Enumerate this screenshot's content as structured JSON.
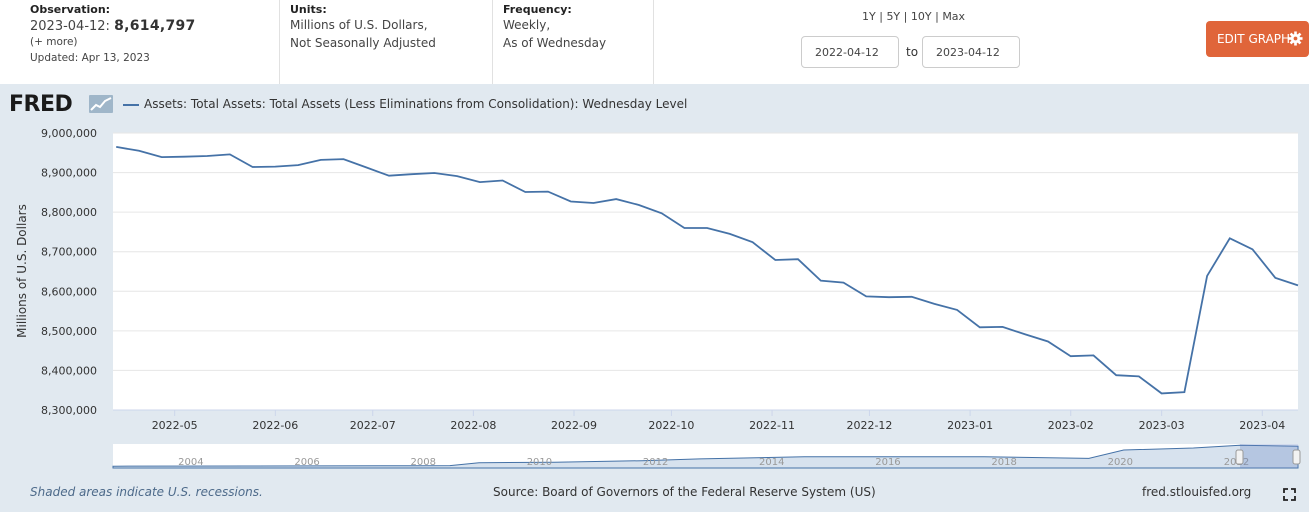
{
  "header": {
    "observation": {
      "label": "Observation:",
      "date": "2023-04-12:",
      "value": "8,614,797",
      "more": "(+ more)",
      "updated": "Updated: Apr 13, 2023"
    },
    "units": {
      "label": "Units:",
      "line1": "Millions of U.S. Dollars,",
      "line2": "Not Seasonally Adjusted"
    },
    "frequency": {
      "label": "Frequency:",
      "line1": "Weekly,",
      "line2": "As of Wednesday"
    },
    "ranges": [
      "1Y",
      "5Y",
      "10Y",
      "Max"
    ],
    "range_sep": "|",
    "start_date": "2022-04-12",
    "to_label": "to",
    "end_date": "2023-04-12",
    "edit_label": "EDIT GRAPH"
  },
  "brand": {
    "logo_text": "FRED"
  },
  "footer": {
    "note": "Shaded areas indicate U.S. recessions.",
    "source": "Source: Board of Governors of the Federal Reserve System (US)",
    "site": "fred.stlouisfed.org"
  },
  "colors": {
    "line": "#4572a7",
    "panel": "#e1e9f0",
    "button": "#e0653a"
  },
  "chart_data": {
    "type": "line",
    "title": "",
    "series": [
      {
        "name": "Assets: Total Assets: Total Assets (Less Eliminations from Consolidation): Wednesday Level",
        "x": [
          "2022-04-13",
          "2022-04-20",
          "2022-04-27",
          "2022-05-04",
          "2022-05-11",
          "2022-05-18",
          "2022-05-25",
          "2022-06-01",
          "2022-06-08",
          "2022-06-15",
          "2022-06-22",
          "2022-06-29",
          "2022-07-06",
          "2022-07-13",
          "2022-07-20",
          "2022-07-27",
          "2022-08-03",
          "2022-08-10",
          "2022-08-17",
          "2022-08-24",
          "2022-08-31",
          "2022-09-07",
          "2022-09-14",
          "2022-09-21",
          "2022-09-28",
          "2022-10-05",
          "2022-10-12",
          "2022-10-19",
          "2022-10-26",
          "2022-11-02",
          "2022-11-09",
          "2022-11-16",
          "2022-11-23",
          "2022-11-30",
          "2022-12-07",
          "2022-12-14",
          "2022-12-21",
          "2022-12-28",
          "2023-01-04",
          "2023-01-11",
          "2023-01-18",
          "2023-01-25",
          "2023-02-01",
          "2023-02-08",
          "2023-02-15",
          "2023-02-22",
          "2023-03-01",
          "2023-03-08",
          "2023-03-15",
          "2023-03-22",
          "2023-03-29",
          "2023-04-05",
          "2023-04-12"
        ],
        "values": [
          8965000,
          8955000,
          8939000,
          8940000,
          8942000,
          8946000,
          8914000,
          8915000,
          8919000,
          8932000,
          8934000,
          8913000,
          8892000,
          8896000,
          8899000,
          8891000,
          8876000,
          8880000,
          8851000,
          8852000,
          8827000,
          8823000,
          8833000,
          8818000,
          8797000,
          8760000,
          8760000,
          8745000,
          8724000,
          8679000,
          8681000,
          8627000,
          8622000,
          8587000,
          8585000,
          8586000,
          8568000,
          8553000,
          8509000,
          8510000,
          8491000,
          8473000,
          8436000,
          8438000,
          8388000,
          8385000,
          8342000,
          8345000,
          8639000,
          8734000,
          8706000,
          8634000,
          8614797
        ]
      }
    ],
    "xlabel": "",
    "ylabel": "Millions of U.S. Dollars",
    "ylim": [
      8300000,
      9000000
    ],
    "yticks": [
      8300000,
      8400000,
      8500000,
      8600000,
      8700000,
      8800000,
      8900000,
      9000000
    ],
    "ytick_labels": [
      "8,300,000",
      "8,400,000",
      "8,500,000",
      "8,600,000",
      "8,700,000",
      "8,800,000",
      "8,900,000",
      "9,000,000"
    ],
    "xlim": [
      "2022-04-12",
      "2023-04-12"
    ],
    "xticks": [
      "2022-05-01",
      "2022-06-01",
      "2022-07-01",
      "2022-08-01",
      "2022-09-01",
      "2022-10-01",
      "2022-11-01",
      "2022-12-01",
      "2023-01-01",
      "2023-02-01",
      "2023-03-01",
      "2023-04-01"
    ],
    "xtick_labels": [
      "2022-05",
      "2022-06",
      "2022-07",
      "2022-08",
      "2022-09",
      "2022-10",
      "2022-11",
      "2022-12",
      "2023-01",
      "2023-02",
      "2023-03",
      "2023-04"
    ],
    "grid": true,
    "navigator": {
      "labels": [
        "2004",
        "2006",
        "2008",
        "2010",
        "2012",
        "2014",
        "2016",
        "2018",
        "2020",
        "2022"
      ],
      "years": [
        2004,
        2006,
        2008,
        2010,
        2012,
        2014,
        2016,
        2018,
        2020,
        2022
      ],
      "range_years": [
        2002.9,
        2023.3
      ],
      "approx_values": [
        [
          2002.9,
          0.73
        ],
        [
          2008.0,
          0.9
        ],
        [
          2008.7,
          0.95
        ],
        [
          2009.2,
          2.1
        ],
        [
          2010.5,
          2.3
        ],
        [
          2012.0,
          2.9
        ],
        [
          2013.0,
          3.6
        ],
        [
          2014.8,
          4.45
        ],
        [
          2017.9,
          4.45
        ],
        [
          2019.7,
          3.8
        ],
        [
          2020.3,
          7.1
        ],
        [
          2021.5,
          7.9
        ],
        [
          2022.3,
          8.95
        ],
        [
          2023.3,
          8.6
        ]
      ],
      "value_max": 9.0
    }
  }
}
